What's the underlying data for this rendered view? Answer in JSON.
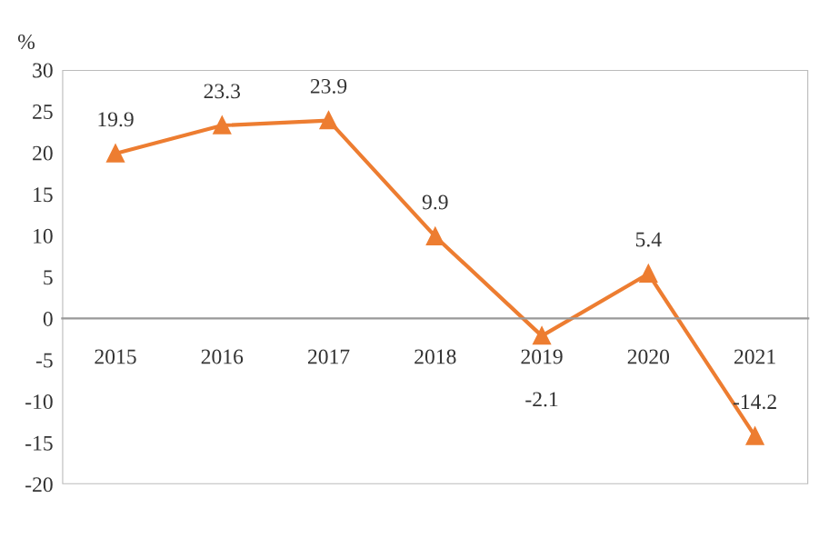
{
  "chart_data": {
    "type": "line",
    "ylabel": "%",
    "categories": [
      "2015",
      "2016",
      "2017",
      "2018",
      "2019",
      "2020",
      "2021"
    ],
    "series": [
      {
        "color": "#ed7d31",
        "values": [
          19.9,
          23.3,
          23.9,
          9.9,
          -2.1,
          5.4,
          -14.2
        ]
      }
    ],
    "ylim": [
      -20,
      30
    ],
    "yticks": [
      -20,
      -15,
      -10,
      -5,
      0,
      5,
      10,
      15,
      20,
      25,
      30
    ],
    "marker": "triangle",
    "data_labels": true,
    "grid": false,
    "legend": false
  }
}
